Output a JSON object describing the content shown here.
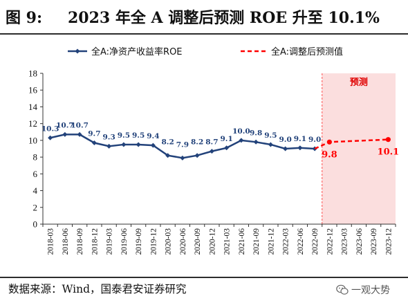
{
  "header": {
    "figure_number": "图 9:",
    "title": "2023 年全 A 调整后预测 ROE 升至 10.1%"
  },
  "footer": {
    "source": "数据来源：Wind，国泰君安证券研究",
    "watermark": "一观大势"
  },
  "colors": {
    "actual": "#22427a",
    "forecast": "#ff0000",
    "forecast_region": "#fbdede"
  },
  "chart_data": {
    "type": "line",
    "title": "",
    "xlabel": "",
    "ylabel": "",
    "ylim": [
      0,
      18
    ],
    "yticks": [
      0,
      2,
      4,
      6,
      8,
      10,
      12,
      14,
      16,
      18
    ],
    "categories": [
      "2018-03",
      "2018-06",
      "2018-09",
      "2018-12",
      "2019-03",
      "2019-06",
      "2019-09",
      "2019-12",
      "2020-03",
      "2020-06",
      "2020-09",
      "2020-12",
      "2021-03",
      "2021-06",
      "2021-09",
      "2021-12",
      "2022-03",
      "2022-06",
      "2022-09",
      "2022-12",
      "2023-03",
      "2023-06",
      "2023-09",
      "2023-12"
    ],
    "series": [
      {
        "name": "全A:净资产收益率ROE",
        "values": [
          10.3,
          10.7,
          10.7,
          9.7,
          9.3,
          9.5,
          9.5,
          9.4,
          8.2,
          7.9,
          8.2,
          8.7,
          9.1,
          10.0,
          9.8,
          9.5,
          9.0,
          9.1,
          9.0,
          null,
          null,
          null,
          null,
          null
        ],
        "labels": [
          "10.3",
          "10.7",
          "10.7",
          "9.7",
          "9.3",
          "9.5",
          "9.5",
          "9.4",
          "8.2",
          "7.9",
          "8.2",
          "8.7",
          "9.1",
          "10.0",
          "9.8",
          "9.5",
          "9.0",
          "9.1",
          "9.0",
          null,
          null,
          null,
          null,
          null
        ]
      },
      {
        "name": "全A:调整后预测值",
        "values": [
          null,
          null,
          null,
          null,
          null,
          null,
          null,
          null,
          null,
          null,
          null,
          null,
          null,
          null,
          null,
          null,
          null,
          null,
          9.0,
          9.8,
          null,
          null,
          null,
          10.1
        ],
        "labels": [
          null,
          null,
          null,
          null,
          null,
          null,
          null,
          null,
          null,
          null,
          null,
          null,
          null,
          null,
          null,
          null,
          null,
          null,
          null,
          "9.8",
          null,
          null,
          null,
          "10.1"
        ]
      }
    ],
    "forecast_region": {
      "from": "2022-12",
      "to": "2023-12",
      "label": "预测"
    },
    "legend_position": "top",
    "grid": false
  }
}
